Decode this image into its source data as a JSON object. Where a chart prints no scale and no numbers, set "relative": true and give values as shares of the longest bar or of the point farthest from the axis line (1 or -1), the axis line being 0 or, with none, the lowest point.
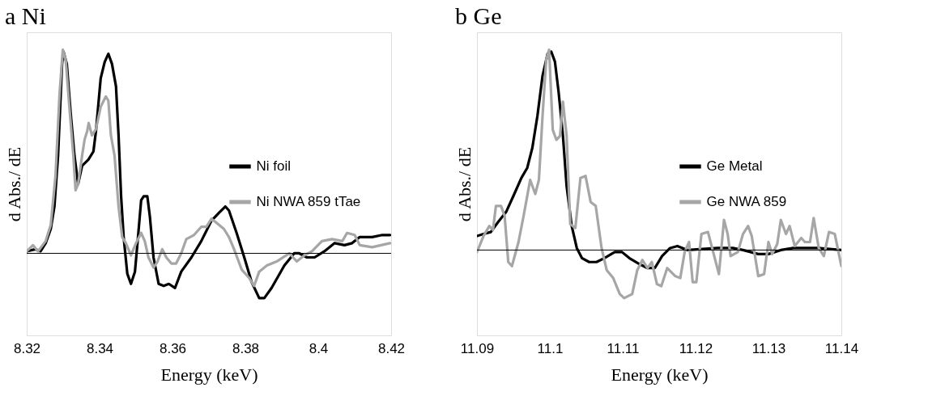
{
  "chart_data": [
    {
      "type": "line",
      "title": "a Ni",
      "xlabel": "Energy (keV)",
      "ylabel": "d Abs./ dE",
      "relative": true,
      "tick_labels": "x",
      "legend": "right",
      "xlim": [
        8.32,
        8.42
      ],
      "xticks": [
        8.32,
        8.34,
        8.36,
        8.38,
        8.4,
        8.42
      ],
      "series": [
        {
          "name": "Ni foil",
          "color": "#000000",
          "x": [
            8.32,
            8.3224,
            8.3238,
            8.3252,
            8.3266,
            8.3276,
            8.3286,
            8.3297,
            8.3301,
            8.331,
            8.3321,
            8.3331,
            8.3341,
            8.3352,
            8.3369,
            8.3383,
            8.339,
            8.3403,
            8.3414,
            8.3424,
            8.3434,
            8.3445,
            8.3452,
            8.3459,
            8.3466,
            8.3476,
            8.3486,
            8.3497,
            8.3503,
            8.3514,
            8.3521,
            8.3531,
            8.3538,
            8.3548,
            8.3562,
            8.3576,
            8.359,
            8.3607,
            8.3624,
            8.3652,
            8.3679,
            8.3707,
            8.3728,
            8.3745,
            8.3755,
            8.3776,
            8.3797,
            8.3817,
            8.3838,
            8.3852,
            8.3872,
            8.3907,
            8.3934,
            8.3948,
            8.3969,
            8.399,
            8.4017,
            8.4045,
            8.4072,
            8.4093,
            8.4114,
            8.4148,
            8.4176,
            8.4197
          ],
          "values": [
            0.01,
            0.02,
            0.01,
            0.05,
            0.12,
            0.23,
            0.48,
            0.93,
            0.99,
            0.93,
            0.68,
            0.48,
            0.34,
            0.43,
            0.46,
            0.5,
            0.6,
            0.86,
            0.94,
            0.98,
            0.93,
            0.82,
            0.58,
            0.28,
            0.08,
            -0.1,
            -0.15,
            -0.09,
            0.03,
            0.26,
            0.28,
            0.28,
            0.18,
            -0.02,
            -0.15,
            -0.16,
            -0.15,
            -0.17,
            -0.09,
            -0.02,
            0.06,
            0.16,
            0.2,
            0.23,
            0.21,
            0.1,
            -0.02,
            -0.14,
            -0.22,
            -0.22,
            -0.17,
            -0.06,
            0.0,
            0.0,
            -0.02,
            -0.02,
            0.01,
            0.05,
            0.04,
            0.05,
            0.08,
            0.08,
            0.09,
            0.09
          ]
        },
        {
          "name": "Ni NWA 859 tTae",
          "color": "#a6a6a6",
          "x": [
            8.32,
            8.3217,
            8.3231,
            8.3252,
            8.3266,
            8.3279,
            8.329,
            8.3299,
            8.3307,
            8.3317,
            8.3328,
            8.3334,
            8.3341,
            8.3352,
            8.3359,
            8.3366,
            8.337,
            8.3379,
            8.339,
            8.3403,
            8.3417,
            8.3424,
            8.3431,
            8.3441,
            8.3452,
            8.3462,
            8.3472,
            8.3486,
            8.35,
            8.3514,
            8.3524,
            8.3534,
            8.3548,
            8.3559,
            8.3572,
            8.3583,
            8.3597,
            8.361,
            8.3624,
            8.3638,
            8.3659,
            8.3679,
            8.3693,
            8.3707,
            8.3721,
            8.3741,
            8.3755,
            8.3769,
            8.379,
            8.381,
            8.3824,
            8.3838,
            8.3859,
            8.3886,
            8.3921,
            8.3941,
            8.3962,
            8.3983,
            8.401,
            8.4038,
            8.4066,
            8.4079,
            8.41,
            8.4114,
            8.4148,
            8.4197
          ],
          "values": [
            0.01,
            0.04,
            0.01,
            0.06,
            0.14,
            0.38,
            0.78,
            1.0,
            0.95,
            0.72,
            0.48,
            0.31,
            0.34,
            0.48,
            0.56,
            0.6,
            0.64,
            0.58,
            0.61,
            0.72,
            0.77,
            0.75,
            0.58,
            0.48,
            0.23,
            0.08,
            0.05,
            -0.01,
            0.05,
            0.1,
            0.06,
            -0.02,
            -0.07,
            -0.04,
            0.02,
            -0.02,
            -0.05,
            -0.05,
            0.0,
            0.07,
            0.09,
            0.13,
            0.13,
            0.17,
            0.15,
            0.12,
            0.08,
            0.02,
            -0.08,
            -0.12,
            -0.16,
            -0.09,
            -0.06,
            -0.04,
            0.0,
            -0.04,
            -0.01,
            0.01,
            0.06,
            0.07,
            0.06,
            0.1,
            0.09,
            0.04,
            0.03,
            0.05
          ]
        }
      ]
    },
    {
      "type": "line",
      "title": "b Ge",
      "xlabel": "Energy (keV)",
      "ylabel": "d Abs./ dE",
      "relative": true,
      "tick_labels": "x",
      "legend": "right",
      "xlim": [
        11.09,
        11.14
      ],
      "xticks": [
        11.09,
        11.1,
        11.11,
        11.12,
        11.13,
        11.14
      ],
      "series": [
        {
          "name": "Ge Metal",
          "color": "#000000",
          "x": [
            11.09,
            11.0909,
            11.0919,
            11.0929,
            11.094,
            11.095,
            11.0961,
            11.0969,
            11.0976,
            11.0983,
            11.099,
            11.0997,
            11.1002,
            11.1007,
            11.1012,
            11.1018,
            11.1023,
            11.103,
            11.1037,
            11.1044,
            11.1054,
            11.1064,
            11.1075,
            11.1089,
            11.1099,
            11.1109,
            11.1123,
            11.1134,
            11.1144,
            11.1154,
            11.1165,
            11.1175,
            11.1189,
            11.123,
            11.1251,
            11.1265,
            11.1286,
            11.13,
            11.1317,
            11.1334,
            11.1369,
            11.14
          ],
          "values": [
            0.07,
            0.08,
            0.09,
            0.14,
            0.19,
            0.27,
            0.36,
            0.41,
            0.51,
            0.67,
            0.87,
            0.98,
            0.99,
            0.94,
            0.79,
            0.57,
            0.32,
            0.12,
            0.01,
            -0.04,
            -0.06,
            -0.06,
            -0.04,
            -0.01,
            -0.01,
            -0.04,
            -0.07,
            -0.09,
            -0.09,
            -0.03,
            0.01,
            0.02,
            0.0,
            0.01,
            0.01,
            0.0,
            -0.02,
            -0.02,
            0.0,
            0.01,
            0.01,
            0.0
          ]
        },
        {
          "name": "Ge NWA 859",
          "color": "#a6a6a6",
          "x": [
            11.09,
            11.0909,
            11.0917,
            11.0922,
            11.0926,
            11.0933,
            11.0938,
            11.0943,
            11.0948,
            11.0957,
            11.0964,
            11.0973,
            11.098,
            11.0985,
            11.099,
            11.0995,
            11.0999,
            11.1004,
            11.1009,
            11.1014,
            11.1018,
            11.1023,
            11.1028,
            11.1035,
            11.1042,
            11.1049,
            11.1056,
            11.1063,
            11.1071,
            11.1078,
            11.1087,
            11.1096,
            11.1102,
            11.1113,
            11.112,
            11.1127,
            11.1134,
            11.114,
            11.1147,
            11.1153,
            11.1161,
            11.1172,
            11.1179,
            11.1185,
            11.1191,
            11.1196,
            11.1201,
            11.1208,
            11.1217,
            11.1227,
            11.1232,
            11.1239,
            11.1244,
            11.1248,
            11.1258,
            11.1265,
            11.1272,
            11.1277,
            11.1286,
            11.1294,
            11.13,
            11.1305,
            11.1312,
            11.1317,
            11.1324,
            11.1329,
            11.1336,
            11.1345,
            11.135,
            11.1357,
            11.1362,
            11.1369,
            11.1376,
            11.1383,
            11.1391,
            11.14
          ],
          "values": [
            -0.01,
            0.07,
            0.12,
            0.1,
            0.22,
            0.22,
            0.17,
            -0.06,
            -0.08,
            0.04,
            0.17,
            0.35,
            0.28,
            0.35,
            0.67,
            0.95,
            1.0,
            0.6,
            0.55,
            0.57,
            0.74,
            0.57,
            0.13,
            0.11,
            0.36,
            0.37,
            0.24,
            0.22,
            0.01,
            -0.1,
            -0.14,
            -0.22,
            -0.24,
            -0.22,
            -0.1,
            -0.05,
            -0.09,
            -0.06,
            -0.17,
            -0.18,
            -0.09,
            -0.13,
            -0.14,
            -0.01,
            0.04,
            -0.16,
            -0.16,
            0.08,
            0.09,
            -0.05,
            -0.12,
            0.15,
            0.08,
            -0.03,
            -0.01,
            0.08,
            0.12,
            0.07,
            -0.13,
            -0.12,
            0.04,
            -0.02,
            0.03,
            0.15,
            0.08,
            0.12,
            0.02,
            0.06,
            0.04,
            0.04,
            0.16,
            0.01,
            -0.03,
            0.09,
            0.08,
            -0.08
          ]
        }
      ]
    }
  ]
}
